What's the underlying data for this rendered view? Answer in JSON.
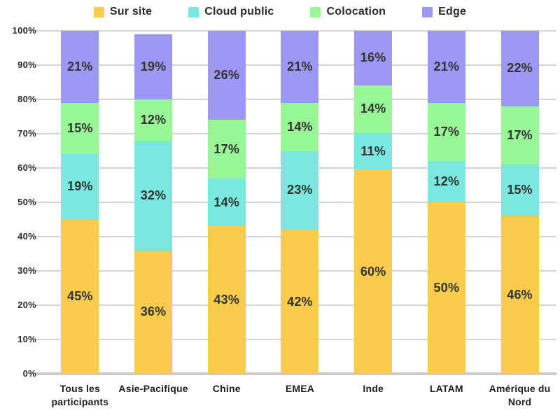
{
  "chart_data": {
    "type": "bar",
    "stacked": true,
    "percent_stacked": true,
    "title": "",
    "xlabel": "",
    "ylabel": "",
    "ylim": [
      0,
      100
    ],
    "grid": true,
    "legend_position": "top",
    "categories": [
      "Tous les participants",
      "Asie-Pacifique",
      "Chine",
      "EMEA",
      "Inde",
      "LATAM",
      "Amérique du Nord"
    ],
    "series": [
      {
        "name": "Sur site",
        "color": "#FBCC4C",
        "values": [
          45,
          36,
          43,
          42,
          60,
          50,
          46
        ]
      },
      {
        "name": "Cloud public",
        "color": "#7CE7DF",
        "values": [
          19,
          32,
          14,
          23,
          11,
          12,
          15
        ]
      },
      {
        "name": "Colocation",
        "color": "#99F896",
        "values": [
          15,
          12,
          17,
          14,
          14,
          17,
          17
        ]
      },
      {
        "name": "Edge",
        "color": "#9D97F6",
        "values": [
          21,
          19,
          26,
          21,
          16,
          21,
          22
        ]
      }
    ],
    "data_labels_suffix": "%",
    "y_ticks": [
      "0%",
      "10%",
      "20%",
      "30%",
      "40%",
      "50%",
      "60%",
      "70%",
      "80%",
      "90%",
      "100%"
    ]
  },
  "style_colors": {
    "gridline": "#d4d4d4",
    "baseline": "#cbcbcb",
    "tick_text": "#2b2b2b",
    "segment_label_text": "#333333"
  }
}
